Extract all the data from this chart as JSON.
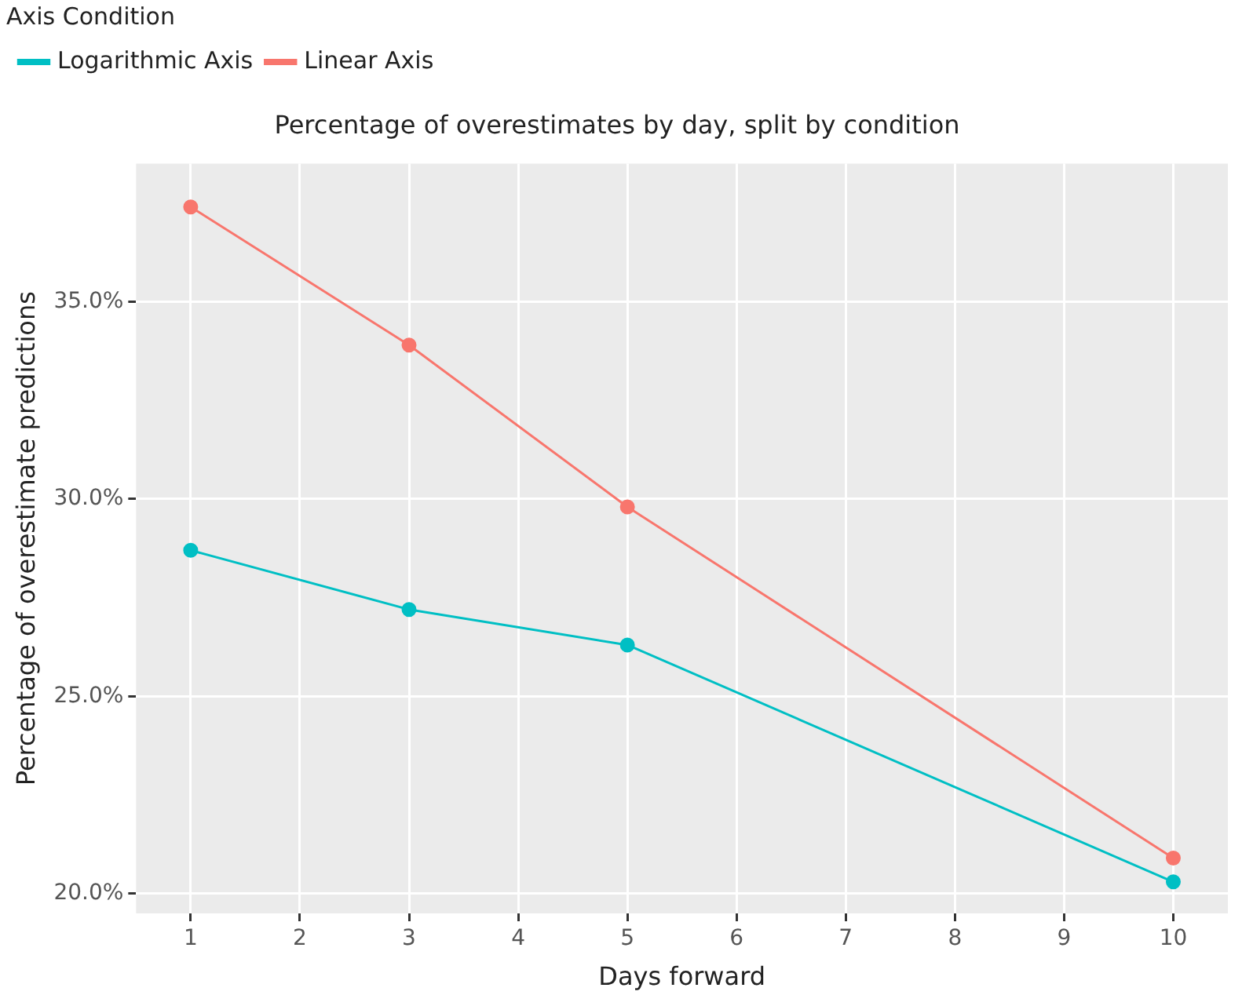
{
  "chart_data": {
    "type": "line",
    "title": "Percentage of overestimates by day, split by condition",
    "xlabel": "Days forward",
    "ylabel": "Percentage of overestimate predictions",
    "legend_title": "Axis Condition",
    "legend": "top",
    "grid": true,
    "marker": "circle",
    "x": [
      1,
      3,
      5,
      10
    ],
    "series": [
      {
        "name": "Logarithmic Axis",
        "color": "#00bfc4",
        "values": [
          28.7,
          27.2,
          26.3,
          20.3
        ]
      },
      {
        "name": "Linear Axis",
        "color": "#f8766d",
        "values": [
          37.4,
          33.9,
          29.8,
          20.9
        ]
      }
    ],
    "xlim": [
      0.5,
      10.5
    ],
    "xticks": [
      1,
      2,
      3,
      4,
      5,
      6,
      7,
      8,
      9,
      10
    ],
    "ylim": [
      19.5,
      38.5
    ],
    "yticks": [
      {
        "value": 20,
        "label": "20.0%"
      },
      {
        "value": 25,
        "label": "25.0%"
      },
      {
        "value": 30,
        "label": "30.0%"
      },
      {
        "value": 35,
        "label": "35.0%"
      }
    ]
  }
}
